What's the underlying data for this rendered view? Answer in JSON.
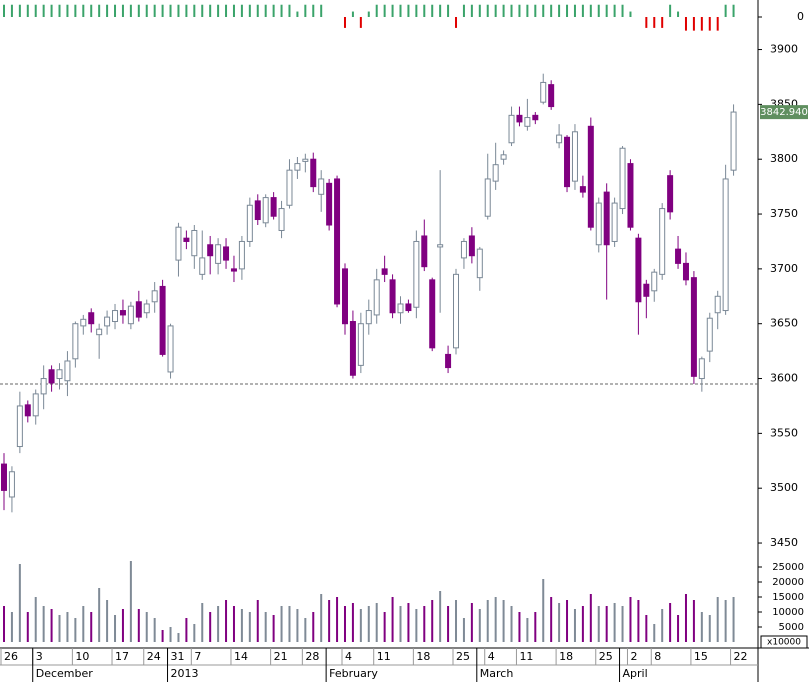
{
  "chart_data": [
    {
      "type": "bar",
      "values": [
        0.9,
        0.9,
        0.9,
        0.9,
        0.9,
        0.9,
        0.9,
        0.9,
        0.9,
        0.9,
        0.9,
        0.9,
        0.9,
        0.9,
        0.9,
        0.9,
        0.9,
        0.9,
        0.9,
        0.9,
        0.9,
        0.9,
        0.9,
        0.9,
        0.9,
        0.9,
        0.9,
        0.9,
        0.9,
        0.9,
        0.9,
        0.9,
        0.9,
        0.9,
        0.9,
        0.9,
        0.9,
        0.4,
        0.9,
        0.9,
        0.9,
        0,
        0,
        -0.8,
        0.4,
        -0.8,
        0.4,
        0.9,
        0.9,
        0.9,
        0.9,
        0.9,
        0.9,
        0.9,
        0.9,
        0.9,
        0.9,
        -0.8,
        0.9,
        0.9,
        0.9,
        0.9,
        0.9,
        0.9,
        0.9,
        0.9,
        0.9,
        0.9,
        0.9,
        0.9,
        0.9,
        0.9,
        0.9,
        0.9,
        0.9,
        0.9,
        0.9,
        0.9,
        0.9,
        0.4,
        0,
        -0.8,
        -0.8,
        -0.8,
        0.9,
        0.4,
        -1,
        -1,
        -1,
        -1,
        -1,
        0.9,
        0.9
      ],
      "colors": {
        "up": "#3aa36a",
        "down": "#e00000"
      },
      "ylim": [
        -1.1,
        1.1
      ],
      "yticks": [
        0
      ]
    },
    {
      "type": "candlestick",
      "categories": [
        "26",
        null,
        null,
        null,
        "3",
        null,
        null,
        null,
        null,
        "10",
        null,
        null,
        null,
        null,
        "17",
        null,
        null,
        null,
        "24",
        null,
        null,
        "31",
        null,
        null,
        "7",
        null,
        null,
        null,
        null,
        "14",
        null,
        null,
        null,
        null,
        "21",
        null,
        null,
        null,
        "28",
        null,
        null,
        null,
        null,
        "4",
        null,
        null,
        null,
        "11",
        null,
        null,
        null,
        null,
        "18",
        null,
        null,
        null,
        null,
        "25",
        null,
        null,
        null,
        "4",
        null,
        null,
        null,
        "11",
        null,
        null,
        null,
        null,
        "18",
        null,
        null,
        null,
        null,
        "25",
        null,
        null,
        null,
        "2",
        null,
        null,
        "8",
        null,
        null,
        null,
        null,
        "15",
        null,
        null,
        null,
        null,
        "22"
      ],
      "months": [
        null,
        null,
        null,
        null,
        "December",
        null,
        null,
        null,
        null,
        null,
        null,
        null,
        null,
        null,
        null,
        null,
        null,
        null,
        null,
        null,
        null,
        "2013",
        null,
        null,
        null,
        null,
        null,
        null,
        null,
        null,
        null,
        null,
        null,
        null,
        null,
        null,
        null,
        null,
        null,
        null,
        null,
        "February",
        null,
        null,
        null,
        null,
        null,
        null,
        null,
        null,
        null,
        null,
        null,
        null,
        null,
        null,
        null,
        null,
        null,
        null,
        "March",
        null,
        null,
        null,
        null,
        null,
        null,
        null,
        null,
        null,
        null,
        null,
        null,
        null,
        null,
        null,
        null,
        null,
        "April",
        null,
        null,
        null,
        null,
        null,
        null,
        null,
        null,
        null,
        null,
        null,
        null,
        null,
        null
      ],
      "open": [
        3522,
        3492,
        3538,
        3576,
        3566,
        3586,
        3608,
        3600,
        3598,
        3618,
        3648,
        3660,
        3640,
        3648,
        3652,
        3662,
        3650,
        3670,
        3660,
        3670,
        3684,
        3606,
        3708,
        3728,
        3712,
        3695,
        3722,
        3705,
        3720,
        3700,
        3700,
        3725,
        3762,
        3742,
        3765,
        3735,
        3758,
        3790,
        3798,
        3800,
        3768,
        3778,
        3782,
        3700,
        3652,
        3612,
        3650,
        3658,
        3700,
        3690,
        3660,
        3668,
        3665,
        3730,
        3690,
        3720,
        3622,
        3628,
        3710,
        3730,
        3692,
        3748,
        3780,
        3800,
        3815,
        3840,
        3830,
        3840,
        3852,
        3868,
        3815,
        3820,
        3780,
        3775,
        3830,
        3722,
        3770,
        3725,
        3755,
        3796,
        3728,
        3686,
        3680,
        3695,
        3785,
        3718,
        3705,
        3692,
        3600,
        3625,
        3660,
        3662,
        3790
      ],
      "high": [
        3532,
        3520,
        3588,
        3580,
        3590,
        3612,
        3612,
        3614,
        3625,
        3652,
        3658,
        3664,
        3650,
        3662,
        3668,
        3672,
        3670,
        3680,
        3672,
        3688,
        3690,
        3650,
        3742,
        3735,
        3740,
        3735,
        3730,
        3728,
        3728,
        3712,
        3730,
        3765,
        3768,
        3768,
        3770,
        3762,
        3800,
        3802,
        3805,
        3806,
        3790,
        3782,
        3785,
        3705,
        3662,
        3660,
        3672,
        3700,
        3712,
        3695,
        3675,
        3672,
        3735,
        3745,
        3692,
        3790,
        3630,
        3700,
        3728,
        3738,
        3720,
        3805,
        3815,
        3808,
        3848,
        3848,
        3855,
        3843,
        3878,
        3872,
        3832,
        3822,
        3832,
        3785,
        3838,
        3765,
        3778,
        3765,
        3812,
        3800,
        3732,
        3690,
        3700,
        3760,
        3790,
        3730,
        3715,
        3698,
        3620,
        3660,
        3680,
        3795,
        3850
      ],
      "low": [
        3480,
        3478,
        3532,
        3560,
        3558,
        3572,
        3588,
        3590,
        3584,
        3610,
        3640,
        3642,
        3618,
        3640,
        3645,
        3650,
        3645,
        3652,
        3655,
        3660,
        3620,
        3600,
        3693,
        3718,
        3700,
        3690,
        3695,
        3695,
        3700,
        3688,
        3690,
        3720,
        3740,
        3738,
        3745,
        3728,
        3755,
        3782,
        3788,
        3770,
        3752,
        3735,
        3665,
        3640,
        3600,
        3605,
        3640,
        3650,
        3688,
        3655,
        3650,
        3660,
        3655,
        3698,
        3625,
        3660,
        3605,
        3622,
        3700,
        3705,
        3680,
        3745,
        3772,
        3795,
        3812,
        3830,
        3826,
        3832,
        3850,
        3845,
        3810,
        3770,
        3772,
        3765,
        3735,
        3715,
        3672,
        3720,
        3750,
        3735,
        3640,
        3655,
        3670,
        3690,
        3745,
        3700,
        3685,
        3595,
        3588,
        3615,
        3645,
        3658,
        3785
      ],
      "close": [
        3498,
        3515,
        3575,
        3566,
        3586,
        3600,
        3596,
        3608,
        3616,
        3650,
        3654,
        3650,
        3645,
        3656,
        3662,
        3658,
        3666,
        3656,
        3668,
        3680,
        3622,
        3648,
        3738,
        3725,
        3735,
        3710,
        3712,
        3722,
        3708,
        3698,
        3725,
        3758,
        3745,
        3765,
        3748,
        3755,
        3790,
        3796,
        3800,
        3775,
        3782,
        3740,
        3668,
        3650,
        3603,
        3650,
        3662,
        3690,
        3695,
        3660,
        3668,
        3662,
        3725,
        3702,
        3628,
        3722,
        3610,
        3695,
        3725,
        3712,
        3718,
        3782,
        3795,
        3804,
        3840,
        3834,
        3838,
        3836,
        3870,
        3848,
        3822,
        3775,
        3825,
        3770,
        3738,
        3760,
        3722,
        3760,
        3810,
        3738,
        3670,
        3675,
        3697,
        3755,
        3752,
        3705,
        3690,
        3602,
        3618,
        3655,
        3675,
        3782,
        3843
      ],
      "up_color": "#ffffff",
      "down_color": "#800080",
      "edge_color": "#7a8896",
      "ylim": [
        3440,
        3916
      ],
      "yticks": [
        3450,
        3500,
        3550,
        3600,
        3650,
        3700,
        3750,
        3800,
        3850,
        3900
      ],
      "hline": 3595,
      "last_price": {
        "value": 3842.94,
        "label": "3842.940"
      }
    },
    {
      "type": "bar",
      "values": [
        12000,
        10000,
        26000,
        10000,
        15000,
        12000,
        11000,
        9000,
        10000,
        8000,
        12000,
        10000,
        18000,
        14000,
        9000,
        11000,
        27000,
        11000,
        10000,
        8000,
        4000,
        5000,
        3000,
        8000,
        6000,
        13000,
        10000,
        12000,
        14000,
        12000,
        11000,
        10000,
        14000,
        10000,
        9000,
        12000,
        12000,
        11000,
        8000,
        10000,
        16000,
        14000,
        15000,
        12000,
        13000,
        11000,
        12000,
        13000,
        10000,
        15000,
        12000,
        13000,
        11000,
        12000,
        14000,
        17000,
        12000,
        14000,
        8000,
        13000,
        11000,
        14000,
        15000,
        14000,
        12000,
        10000,
        8000,
        10000,
        21000,
        15000,
        13000,
        14000,
        11000,
        12000,
        16000,
        12000,
        12000,
        13000,
        12000,
        15000,
        14000,
        9000,
        6000,
        11000,
        13000,
        9000,
        16000,
        14000,
        10000,
        9000,
        15000,
        14000,
        15000
      ],
      "colors": {
        "up": "#7f8a96",
        "down": "#800080"
      },
      "ylim": [
        0,
        28000
      ],
      "yticks": [
        5000,
        10000,
        15000,
        20000,
        25000
      ],
      "unit_label": "x10000"
    }
  ]
}
